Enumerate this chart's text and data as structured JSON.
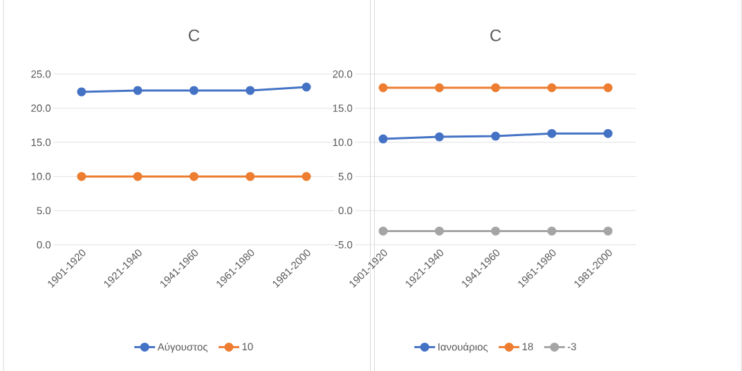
{
  "chart_data": [
    {
      "type": "line",
      "title": "C",
      "categories": [
        "1901-1920",
        "1921-1940",
        "1941-1960",
        "1961-1980",
        "1981-2000"
      ],
      "series": [
        {
          "name": "Αύγουστος",
          "color": "#4472c4",
          "values": [
            22.4,
            22.6,
            22.6,
            22.6,
            23.1
          ]
        },
        {
          "name": "10",
          "color": "#ed7d31",
          "values": [
            10,
            10,
            10,
            10,
            10
          ]
        }
      ],
      "ylim": [
        0,
        25
      ],
      "yticks": [
        {
          "value": 0,
          "label": "0.0"
        },
        {
          "value": 5,
          "label": "5.0"
        },
        {
          "value": 10,
          "label": "10.0"
        },
        {
          "value": 15,
          "label": "15.0"
        },
        {
          "value": 20,
          "label": "20.0"
        },
        {
          "value": 25,
          "label": "25.0"
        }
      ],
      "grid": "y",
      "legend": "bottom",
      "marker": "circle"
    },
    {
      "type": "line",
      "title": "C",
      "categories": [
        "1901-1920",
        "1921-1940",
        "1941-1960",
        "1961-1980",
        "1981-2000"
      ],
      "series": [
        {
          "name": "Ιανουάριος",
          "color": "#4472c4",
          "values": [
            10.5,
            10.8,
            10.9,
            11.3,
            11.3
          ]
        },
        {
          "name": "18",
          "color": "#ed7d31",
          "values": [
            18,
            18,
            18,
            18,
            18
          ]
        },
        {
          "name": "-3",
          "color": "#a5a5a5",
          "values": [
            -3,
            -3,
            -3,
            -3,
            -3
          ]
        }
      ],
      "ylim": [
        -5,
        20
      ],
      "yticks": [
        {
          "value": -5,
          "label": "-5.0"
        },
        {
          "value": 0,
          "label": "0.0"
        },
        {
          "value": 5,
          "label": "5.0"
        },
        {
          "value": 10,
          "label": "10.0"
        },
        {
          "value": 15,
          "label": "15.0"
        },
        {
          "value": 20,
          "label": "20.0"
        }
      ],
      "grid": "y",
      "legend": "bottom",
      "marker": "circle"
    }
  ]
}
